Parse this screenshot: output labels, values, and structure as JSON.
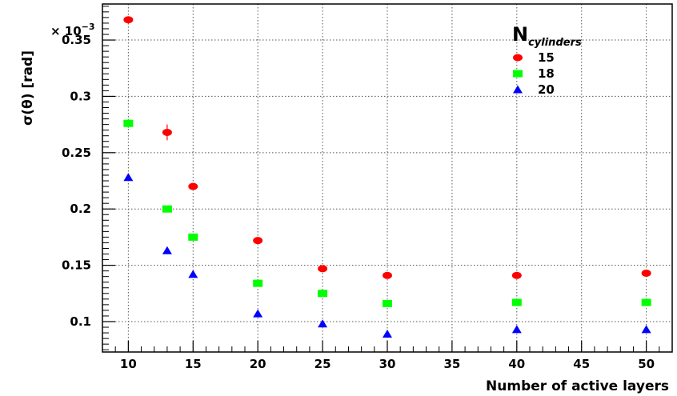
{
  "chart_data": {
    "type": "scatter",
    "xlabel": "Number of active layers",
    "ylabel": "σ(θ) [rad]",
    "y_multiplier": "× 10",
    "y_multiplier_exp": "−3",
    "xlim": [
      8,
      52
    ],
    "ylim": [
      0.073,
      0.382
    ],
    "xticks": [
      10,
      15,
      20,
      25,
      30,
      35,
      40,
      45,
      50
    ],
    "yticks": [
      0.1,
      0.15,
      0.2,
      0.25,
      0.3,
      0.35
    ],
    "ytick_labels": [
      "0.1",
      "0.15",
      "0.2",
      "0.25",
      "0.3",
      "0.35"
    ],
    "grid": true,
    "legend_title": "N",
    "legend_title_sub": "cylinders",
    "legend_position": "top-right",
    "series": [
      {
        "name": "15",
        "marker": "circle",
        "color": "#ff0000",
        "points": [
          {
            "x": 10,
            "y": 0.368,
            "err": 0.003
          },
          {
            "x": 13,
            "y": 0.268,
            "err": 0.007
          },
          {
            "x": 15,
            "y": 0.22,
            "err": 0.002
          },
          {
            "x": 20,
            "y": 0.172,
            "err": 0.002
          },
          {
            "x": 25,
            "y": 0.147,
            "err": 0.002
          },
          {
            "x": 30,
            "y": 0.141,
            "err": 0.002
          },
          {
            "x": 40,
            "y": 0.141,
            "err": 0.002
          },
          {
            "x": 50,
            "y": 0.143,
            "err": 0.002
          }
        ]
      },
      {
        "name": "18",
        "marker": "square",
        "color": "#00ff00",
        "points": [
          {
            "x": 10,
            "y": 0.276,
            "err": 0.004
          },
          {
            "x": 13,
            "y": 0.2,
            "err": 0.002
          },
          {
            "x": 15,
            "y": 0.175,
            "err": 0.002
          },
          {
            "x": 20,
            "y": 0.134,
            "err": 0.002
          },
          {
            "x": 25,
            "y": 0.125,
            "err": 0.002
          },
          {
            "x": 30,
            "y": 0.116,
            "err": 0.002
          },
          {
            "x": 40,
            "y": 0.117,
            "err": 0.002
          },
          {
            "x": 50,
            "y": 0.117,
            "err": 0.002
          }
        ]
      },
      {
        "name": "20",
        "marker": "triangle",
        "color": "#0000ff",
        "points": [
          {
            "x": 10,
            "y": 0.228,
            "err": 0.003
          },
          {
            "x": 13,
            "y": 0.163,
            "err": 0.002
          },
          {
            "x": 15,
            "y": 0.142,
            "err": 0.002
          },
          {
            "x": 20,
            "y": 0.107,
            "err": 0.002
          },
          {
            "x": 25,
            "y": 0.098,
            "err": 0.002
          },
          {
            "x": 30,
            "y": 0.089,
            "err": 0.002
          },
          {
            "x": 40,
            "y": 0.093,
            "err": 0.002
          },
          {
            "x": 50,
            "y": 0.093,
            "err": 0.002
          }
        ]
      }
    ]
  }
}
